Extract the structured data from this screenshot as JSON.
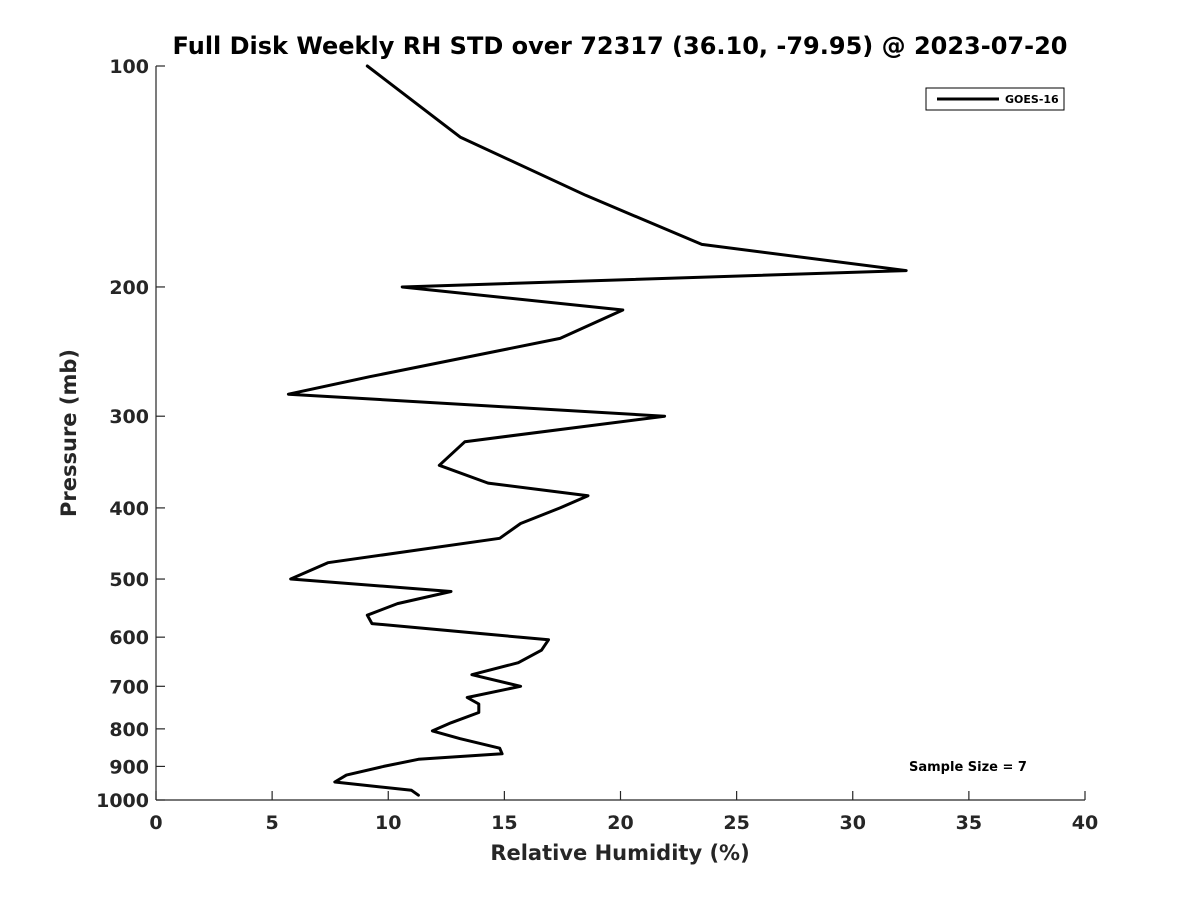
{
  "chart_data": {
    "type": "line",
    "title": "Full Disk Weekly RH STD over 72317 (36.10, -79.95) @ 2023-07-20",
    "xlabel": "Relative Humidity (%)",
    "ylabel": "Pressure (mb)",
    "xlim": [
      0,
      40
    ],
    "ylim": [
      100,
      1000
    ],
    "yscale": "log",
    "yreversed": true,
    "x_ticks": [
      0,
      5,
      10,
      15,
      20,
      25,
      30,
      35,
      40
    ],
    "x_tick_labels": [
      "0",
      "5",
      "10",
      "15",
      "20",
      "25",
      "30",
      "35",
      "40"
    ],
    "y_ticks": [
      100,
      200,
      300,
      400,
      500,
      600,
      700,
      800,
      900,
      1000
    ],
    "y_tick_labels": [
      "100",
      "200",
      "300",
      "400",
      "500",
      "600",
      "700",
      "800",
      "900",
      "1000"
    ],
    "grid": false,
    "legend": {
      "placement": "top-right"
    },
    "annotation": "Sample Size = 7",
    "series": [
      {
        "name": "GOES-16",
        "color": "#000000",
        "points": [
          [
            9.1,
            100
          ],
          [
            13.1,
            125
          ],
          [
            18.5,
            150
          ],
          [
            23.5,
            175
          ],
          [
            32.3,
            190
          ],
          [
            10.6,
            200
          ],
          [
            20.1,
            215
          ],
          [
            17.4,
            235
          ],
          [
            9.2,
            265
          ],
          [
            5.7,
            280
          ],
          [
            21.9,
            300
          ],
          [
            13.3,
            325
          ],
          [
            12.2,
            350
          ],
          [
            14.3,
            370
          ],
          [
            18.6,
            385
          ],
          [
            17.4,
            400
          ],
          [
            15.7,
            420
          ],
          [
            14.8,
            440
          ],
          [
            10.5,
            460
          ],
          [
            7.4,
            475
          ],
          [
            5.8,
            500
          ],
          [
            12.7,
            520
          ],
          [
            10.4,
            540
          ],
          [
            9.1,
            560
          ],
          [
            9.3,
            575
          ],
          [
            16.9,
            605
          ],
          [
            16.6,
            625
          ],
          [
            15.6,
            650
          ],
          [
            13.6,
            675
          ],
          [
            15.7,
            700
          ],
          [
            13.4,
            725
          ],
          [
            13.9,
            740
          ],
          [
            13.9,
            760
          ],
          [
            12.7,
            785
          ],
          [
            11.9,
            805
          ],
          [
            13.1,
            825
          ],
          [
            14.8,
            850
          ],
          [
            14.9,
            865
          ],
          [
            11.3,
            880
          ],
          [
            9.8,
            900
          ],
          [
            8.2,
            925
          ],
          [
            7.7,
            945
          ],
          [
            11.0,
            970
          ],
          [
            11.3,
            985
          ]
        ]
      }
    ]
  }
}
